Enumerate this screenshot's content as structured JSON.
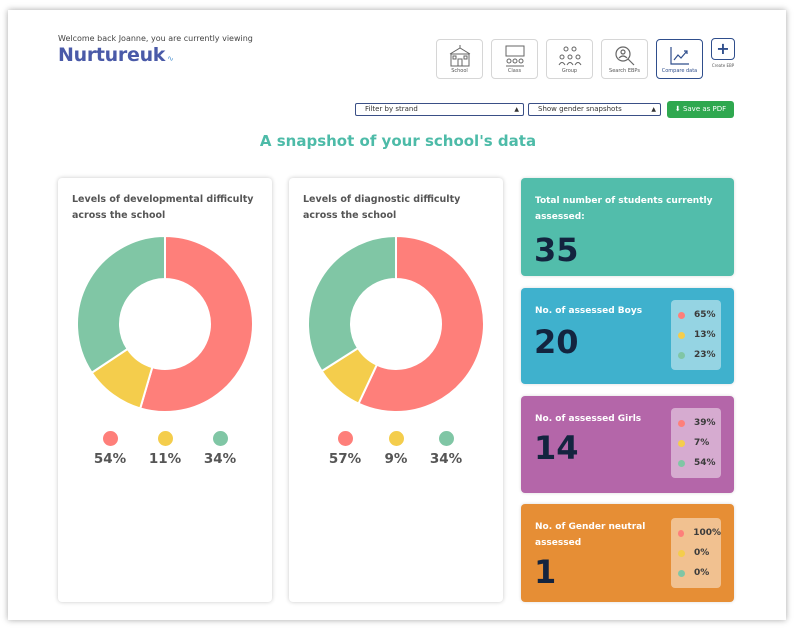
{
  "header": {
    "welcome": "Welcome back Joanne, you are currently viewing",
    "brand": "Nurtureuk",
    "brand_tail": "∿"
  },
  "nav": [
    {
      "label": "School",
      "icon": "school-icon"
    },
    {
      "label": "Class",
      "icon": "class-icon"
    },
    {
      "label": "Group",
      "icon": "group-icon"
    },
    {
      "label": "Search EBPs",
      "icon": "search-icon"
    },
    {
      "label": "Compare data",
      "icon": "compare-chart-icon",
      "active": true
    }
  ],
  "create": {
    "symbol": "+",
    "label": "Create EBP"
  },
  "filters": {
    "strand": "Filter by strand",
    "gender": "Show gender snapshots",
    "pdf": "Save as PDF"
  },
  "headline": "A snapshot of your school's data",
  "colors": {
    "red": "#fe7f7a",
    "yellow": "#f4cd4c",
    "green": "#80c6a5",
    "teal": "#52bdab",
    "blue": "#3fb1cd",
    "purple": "#b466a9",
    "orange": "#e68e35"
  },
  "chart_data": [
    {
      "type": "pie",
      "title": "Levels of developmental difficulty across the school",
      "values": [
        54,
        11,
        34
      ],
      "labels": [
        "54%",
        "11%",
        "34%"
      ],
      "colors": [
        "#fe7f7a",
        "#f4cd4c",
        "#80c6a5"
      ]
    },
    {
      "type": "pie",
      "title": "Levels of diagnostic difficulty across the school",
      "values": [
        57,
        9,
        34
      ],
      "labels": [
        "57%",
        "9%",
        "34%"
      ],
      "colors": [
        "#fe7f7a",
        "#f4cd4c",
        "#80c6a5"
      ]
    }
  ],
  "stats": {
    "total": {
      "title": "Total number of students currently assessed:",
      "value": "35"
    },
    "boys": {
      "title": "No. of assessed Boys",
      "value": "20",
      "breakdown": [
        "65%",
        "13%",
        "23%"
      ]
    },
    "girls": {
      "title": "No. of assessed Girls",
      "value": "14",
      "breakdown": [
        "39%",
        "7%",
        "54%"
      ]
    },
    "neutral": {
      "title": "No. of Gender neutral assessed",
      "value": "1",
      "breakdown": [
        "100%",
        "0%",
        "0%"
      ]
    }
  }
}
